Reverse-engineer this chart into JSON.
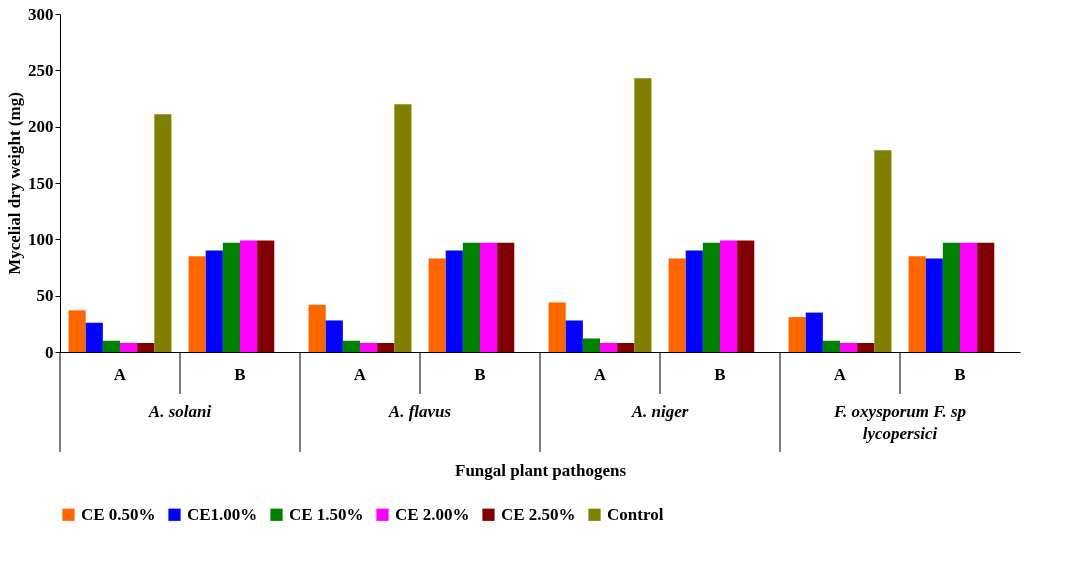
{
  "chart_data": {
    "type": "bar",
    "ylabel": "Mycelial dry weight (mg)",
    "xlabel": "Fungal plant pathogens",
    "categories": [
      "A",
      "B",
      "A",
      "B",
      "A",
      "B",
      "A",
      "B"
    ],
    "annotations": [
      "A. solani",
      "A. flavus",
      "A. niger",
      "F. oxysporum F. sp lycopersici"
    ],
    "series": [
      {
        "name": "CE 0.50%",
        "color": "#ff6600",
        "values": [
          37,
          85,
          42,
          83,
          44,
          83,
          31,
          85
        ]
      },
      {
        "name": "CE1.00%",
        "color": "#0000ff",
        "values": [
          26,
          90,
          28,
          90,
          28,
          90,
          35,
          83
        ]
      },
      {
        "name": "CE 1.50%",
        "color": "#008000",
        "values": [
          10,
          97,
          10,
          97,
          12,
          97,
          10,
          97
        ]
      },
      {
        "name": "CE 2.00%",
        "color": "#ff00ff",
        "values": [
          8,
          99,
          8,
          97,
          8,
          99,
          8,
          97
        ]
      },
      {
        "name": "CE 2.50%",
        "color": "#800000",
        "values": [
          8,
          99,
          8,
          97,
          8,
          99,
          8,
          97
        ]
      },
      {
        "name": "Control",
        "color": "#808000",
        "values": [
          211,
          null,
          220,
          null,
          243,
          null,
          179,
          null
        ]
      }
    ],
    "ylim": [
      0,
      300
    ],
    "yticks": [
      0,
      50,
      100,
      150,
      200,
      250,
      300
    ],
    "grid": false,
    "legend": "bottom"
  }
}
